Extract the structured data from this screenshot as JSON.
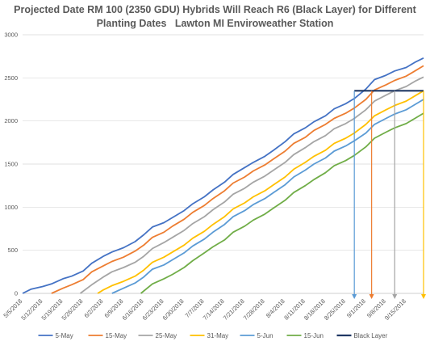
{
  "chart_data": {
    "type": "line",
    "title": "Projected Date RM 100 (2350 GDU) Hybrids Will Reach R6 (Black Layer) for Different",
    "subtitle": "Planting Dates   Lawton MI Enviroweather Station",
    "xlabel": "",
    "ylabel": "",
    "ylim": [
      0,
      3000
    ],
    "yticks": [
      "0",
      "500",
      "1000",
      "1500",
      "2000",
      "2500",
      "3000"
    ],
    "xticks": [
      "5/5/2018",
      "5/12/2018",
      "5/19/2018",
      "5/26/2018",
      "6/2/2018",
      "6/9/2018",
      "6/16/2018",
      "6/23/2018",
      "6/30/2018",
      "7/7/2018",
      "7/14/2018",
      "7/21/2018",
      "7/28/2018",
      "8/4/2018",
      "8/11/2018",
      "8/18/2018",
      "8/25/2018",
      "9/1/2018",
      "9/8/2018",
      "9/15/2018"
    ],
    "x_range": [
      "2018-05-05",
      "2018-09-21"
    ],
    "grid": "horizontal",
    "legend_position": "bottom",
    "series": [
      {
        "name": "5-May",
        "color": "#4472C4",
        "points": [
          [
            "2018-05-05",
            0
          ],
          [
            "2018-05-08",
            50
          ],
          [
            "2018-05-12",
            80
          ],
          [
            "2018-05-15",
            110
          ],
          [
            "2018-05-19",
            170
          ],
          [
            "2018-05-22",
            200
          ],
          [
            "2018-05-26",
            260
          ],
          [
            "2018-05-29",
            350
          ],
          [
            "2018-06-02",
            430
          ],
          [
            "2018-06-05",
            480
          ],
          [
            "2018-06-09",
            530
          ],
          [
            "2018-06-13",
            600
          ],
          [
            "2018-06-16",
            680
          ],
          [
            "2018-06-19",
            770
          ],
          [
            "2018-06-23",
            820
          ],
          [
            "2018-06-26",
            880
          ],
          [
            "2018-06-30",
            960
          ],
          [
            "2018-07-03",
            1040
          ],
          [
            "2018-07-07",
            1120
          ],
          [
            "2018-07-10",
            1200
          ],
          [
            "2018-07-14",
            1290
          ],
          [
            "2018-07-17",
            1380
          ],
          [
            "2018-07-21",
            1460
          ],
          [
            "2018-07-24",
            1520
          ],
          [
            "2018-07-28",
            1590
          ],
          [
            "2018-07-31",
            1660
          ],
          [
            "2018-08-04",
            1760
          ],
          [
            "2018-08-07",
            1850
          ],
          [
            "2018-08-11",
            1920
          ],
          [
            "2018-08-14",
            1990
          ],
          [
            "2018-08-18",
            2060
          ],
          [
            "2018-08-21",
            2140
          ],
          [
            "2018-08-25",
            2200
          ],
          [
            "2018-08-28",
            2260
          ],
          [
            "2018-09-01",
            2370
          ],
          [
            "2018-09-04",
            2480
          ],
          [
            "2018-09-08",
            2530
          ],
          [
            "2018-09-11",
            2580
          ],
          [
            "2018-09-15",
            2620
          ],
          [
            "2018-09-18",
            2680
          ],
          [
            "2018-09-21",
            2730
          ]
        ]
      },
      {
        "name": "15-May",
        "color": "#ED7D31",
        "points": [
          [
            "2018-05-15",
            0
          ],
          [
            "2018-05-19",
            60
          ],
          [
            "2018-05-22",
            100
          ],
          [
            "2018-05-26",
            160
          ],
          [
            "2018-05-29",
            250
          ],
          [
            "2018-06-02",
            320
          ],
          [
            "2018-06-05",
            370
          ],
          [
            "2018-06-09",
            420
          ],
          [
            "2018-06-13",
            490
          ],
          [
            "2018-06-16",
            560
          ],
          [
            "2018-06-19",
            650
          ],
          [
            "2018-06-23",
            710
          ],
          [
            "2018-06-26",
            780
          ],
          [
            "2018-06-30",
            860
          ],
          [
            "2018-07-03",
            940
          ],
          [
            "2018-07-07",
            1020
          ],
          [
            "2018-07-10",
            1100
          ],
          [
            "2018-07-14",
            1190
          ],
          [
            "2018-07-17",
            1280
          ],
          [
            "2018-07-21",
            1350
          ],
          [
            "2018-07-24",
            1420
          ],
          [
            "2018-07-28",
            1490
          ],
          [
            "2018-07-31",
            1560
          ],
          [
            "2018-08-04",
            1650
          ],
          [
            "2018-08-07",
            1740
          ],
          [
            "2018-08-11",
            1810
          ],
          [
            "2018-08-14",
            1890
          ],
          [
            "2018-08-18",
            1960
          ],
          [
            "2018-08-21",
            2030
          ],
          [
            "2018-08-25",
            2090
          ],
          [
            "2018-08-28",
            2150
          ],
          [
            "2018-09-01",
            2250
          ],
          [
            "2018-09-04",
            2360
          ],
          [
            "2018-09-08",
            2420
          ],
          [
            "2018-09-11",
            2470
          ],
          [
            "2018-09-15",
            2520
          ],
          [
            "2018-09-18",
            2580
          ],
          [
            "2018-09-21",
            2640
          ]
        ]
      },
      {
        "name": "25-May",
        "color": "#A5A5A5",
        "points": [
          [
            "2018-05-25",
            0
          ],
          [
            "2018-05-29",
            100
          ],
          [
            "2018-06-02",
            190
          ],
          [
            "2018-06-05",
            250
          ],
          [
            "2018-06-09",
            300
          ],
          [
            "2018-06-13",
            360
          ],
          [
            "2018-06-16",
            430
          ],
          [
            "2018-06-19",
            520
          ],
          [
            "2018-06-23",
            590
          ],
          [
            "2018-06-26",
            650
          ],
          [
            "2018-06-30",
            730
          ],
          [
            "2018-07-03",
            810
          ],
          [
            "2018-07-07",
            890
          ],
          [
            "2018-07-10",
            970
          ],
          [
            "2018-07-14",
            1060
          ],
          [
            "2018-07-17",
            1150
          ],
          [
            "2018-07-21",
            1220
          ],
          [
            "2018-07-24",
            1290
          ],
          [
            "2018-07-28",
            1360
          ],
          [
            "2018-07-31",
            1430
          ],
          [
            "2018-08-04",
            1520
          ],
          [
            "2018-08-07",
            1610
          ],
          [
            "2018-08-11",
            1690
          ],
          [
            "2018-08-14",
            1760
          ],
          [
            "2018-08-18",
            1830
          ],
          [
            "2018-08-21",
            1910
          ],
          [
            "2018-08-25",
            1970
          ],
          [
            "2018-08-28",
            2030
          ],
          [
            "2018-09-01",
            2130
          ],
          [
            "2018-09-04",
            2230
          ],
          [
            "2018-09-08",
            2300
          ],
          [
            "2018-09-11",
            2350
          ],
          [
            "2018-09-15",
            2400
          ],
          [
            "2018-09-18",
            2460
          ],
          [
            "2018-09-21",
            2510
          ]
        ]
      },
      {
        "name": "31-May",
        "color": "#FFC000",
        "points": [
          [
            "2018-05-31",
            0
          ],
          [
            "2018-06-02",
            40
          ],
          [
            "2018-06-05",
            90
          ],
          [
            "2018-06-09",
            140
          ],
          [
            "2018-06-13",
            200
          ],
          [
            "2018-06-16",
            270
          ],
          [
            "2018-06-19",
            360
          ],
          [
            "2018-06-23",
            420
          ],
          [
            "2018-06-26",
            480
          ],
          [
            "2018-06-30",
            560
          ],
          [
            "2018-07-03",
            640
          ],
          [
            "2018-07-07",
            720
          ],
          [
            "2018-07-10",
            800
          ],
          [
            "2018-07-14",
            890
          ],
          [
            "2018-07-17",
            980
          ],
          [
            "2018-07-21",
            1050
          ],
          [
            "2018-07-24",
            1120
          ],
          [
            "2018-07-28",
            1190
          ],
          [
            "2018-07-31",
            1260
          ],
          [
            "2018-08-04",
            1350
          ],
          [
            "2018-08-07",
            1440
          ],
          [
            "2018-08-11",
            1520
          ],
          [
            "2018-08-14",
            1590
          ],
          [
            "2018-08-18",
            1660
          ],
          [
            "2018-08-21",
            1740
          ],
          [
            "2018-08-25",
            1800
          ],
          [
            "2018-08-28",
            1860
          ],
          [
            "2018-09-01",
            1960
          ],
          [
            "2018-09-04",
            2060
          ],
          [
            "2018-09-08",
            2130
          ],
          [
            "2018-09-11",
            2180
          ],
          [
            "2018-09-15",
            2230
          ],
          [
            "2018-09-18",
            2290
          ],
          [
            "2018-09-21",
            2350
          ]
        ]
      },
      {
        "name": "5-Jun",
        "color": "#5B9BD5",
        "points": [
          [
            "2018-06-05",
            0
          ],
          [
            "2018-06-09",
            60
          ],
          [
            "2018-06-13",
            120
          ],
          [
            "2018-06-16",
            190
          ],
          [
            "2018-06-19",
            280
          ],
          [
            "2018-06-23",
            330
          ],
          [
            "2018-06-26",
            390
          ],
          [
            "2018-06-30",
            470
          ],
          [
            "2018-07-03",
            550
          ],
          [
            "2018-07-07",
            630
          ],
          [
            "2018-07-10",
            710
          ],
          [
            "2018-07-14",
            800
          ],
          [
            "2018-07-17",
            890
          ],
          [
            "2018-07-21",
            960
          ],
          [
            "2018-07-24",
            1030
          ],
          [
            "2018-07-28",
            1100
          ],
          [
            "2018-07-31",
            1170
          ],
          [
            "2018-08-04",
            1260
          ],
          [
            "2018-08-07",
            1350
          ],
          [
            "2018-08-11",
            1430
          ],
          [
            "2018-08-14",
            1500
          ],
          [
            "2018-08-18",
            1570
          ],
          [
            "2018-08-21",
            1650
          ],
          [
            "2018-08-25",
            1710
          ],
          [
            "2018-08-28",
            1770
          ],
          [
            "2018-09-01",
            1860
          ],
          [
            "2018-09-04",
            1960
          ],
          [
            "2018-09-08",
            2030
          ],
          [
            "2018-09-11",
            2080
          ],
          [
            "2018-09-15",
            2130
          ],
          [
            "2018-09-18",
            2190
          ],
          [
            "2018-09-21",
            2250
          ]
        ]
      },
      {
        "name": "15-Jun",
        "color": "#70AD47",
        "points": [
          [
            "2018-06-15",
            0
          ],
          [
            "2018-06-19",
            110
          ],
          [
            "2018-06-23",
            170
          ],
          [
            "2018-06-26",
            220
          ],
          [
            "2018-06-30",
            300
          ],
          [
            "2018-07-03",
            380
          ],
          [
            "2018-07-07",
            470
          ],
          [
            "2018-07-10",
            540
          ],
          [
            "2018-07-14",
            620
          ],
          [
            "2018-07-17",
            710
          ],
          [
            "2018-07-21",
            780
          ],
          [
            "2018-07-24",
            850
          ],
          [
            "2018-07-28",
            920
          ],
          [
            "2018-07-31",
            990
          ],
          [
            "2018-08-04",
            1080
          ],
          [
            "2018-08-07",
            1170
          ],
          [
            "2018-08-11",
            1250
          ],
          [
            "2018-08-14",
            1320
          ],
          [
            "2018-08-18",
            1400
          ],
          [
            "2018-08-21",
            1480
          ],
          [
            "2018-08-25",
            1540
          ],
          [
            "2018-08-28",
            1600
          ],
          [
            "2018-09-01",
            1700
          ],
          [
            "2018-09-04",
            1800
          ],
          [
            "2018-09-08",
            1870
          ],
          [
            "2018-09-11",
            1920
          ],
          [
            "2018-09-15",
            1970
          ],
          [
            "2018-09-18",
            2030
          ],
          [
            "2018-09-21",
            2090
          ]
        ]
      },
      {
        "name": "Black Layer",
        "color": "#203864",
        "points": [
          [
            "2018-08-28",
            2350
          ],
          [
            "2018-09-21",
            2350
          ]
        ]
      }
    ],
    "arrows": [
      {
        "date": "2018-08-28",
        "color": "#5B9BD5"
      },
      {
        "date": "2018-09-03",
        "color": "#ED7D31"
      },
      {
        "date": "2018-09-11",
        "color": "#A5A5A5"
      },
      {
        "date": "2018-09-21",
        "color": "#FFC000"
      }
    ]
  }
}
